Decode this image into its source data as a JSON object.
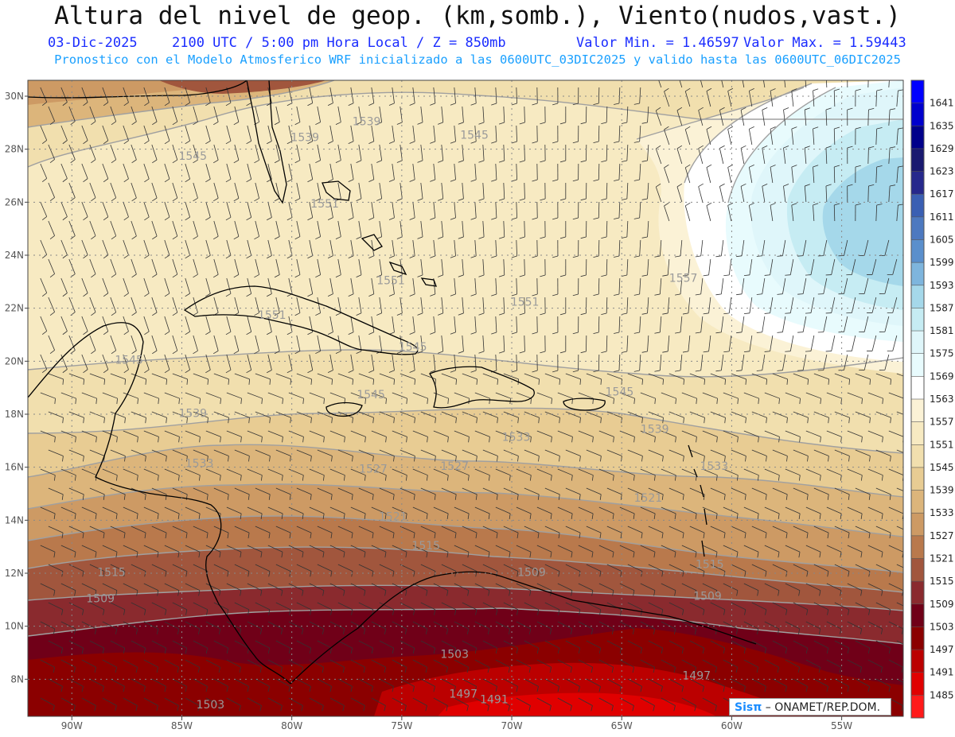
{
  "header": {
    "title": "Altura del nivel de geop. (km,somb.), Viento(nudos,vast.)",
    "date": "03-Dic-2025",
    "time": "2100 UTC / 5:00 pm Hora Local / Z = 850mb",
    "min": "Valor Min. = 1.46597",
    "max": "Valor Max. = 1.59443",
    "forecast": "Pronostico con el Modelo Atmosferico WRF inicializado a las 0600UTC_03DIC2025 y valido hasta las  0600UTC_06DIC2025"
  },
  "credit": {
    "brand": "Sisπ",
    "text": "– ONAMET/REP.DOM."
  },
  "map": {
    "lon_labels": [
      "90W",
      "85W",
      "80W",
      "75W",
      "70W",
      "65W",
      "60W",
      "55W"
    ],
    "lat_labels": [
      "30N",
      "28N",
      "26N",
      "24N",
      "22N",
      "20N",
      "18N",
      "16N",
      "14N",
      "12N",
      "10N",
      "8N"
    ],
    "lon_range": [
      -92,
      -52.2
    ],
    "lat_range": [
      6.6,
      30.6
    ],
    "colorbar": {
      "levels": [
        "1641",
        "1635",
        "1629",
        "1623",
        "1617",
        "1611",
        "1605",
        "1599",
        "1593",
        "1587",
        "1581",
        "1575",
        "1569",
        "1563",
        "1557",
        "1551",
        "1545",
        "1539",
        "1533",
        "1527",
        "1521",
        "1515",
        "1509",
        "1503",
        "1497",
        "1491",
        "1485"
      ],
      "colors": [
        "#0000ff",
        "#0000cd",
        "#00008b",
        "#191970",
        "#26288c",
        "#3a5fb3",
        "#4d79c0",
        "#5a8fcc",
        "#7eb5dd",
        "#a5d8ea",
        "#c6ecf3",
        "#dff6fa",
        "#e8fbfd",
        "#ffffff",
        "#fbf2d6",
        "#f7eac2",
        "#f1dfae",
        "#e8cc93",
        "#dcb57b",
        "#cd9a64",
        "#b9794c",
        "#a1563d",
        "#8a2a2e",
        "#700018",
        "#8b0000",
        "#bb0000",
        "#e00000",
        "#ff1a1a"
      ]
    },
    "contour_labels": [
      {
        "text": "1539",
        "lon": -79.4,
        "lat": 28.3
      },
      {
        "text": "1539",
        "lon": -76.6,
        "lat": 28.9
      },
      {
        "text": "1545",
        "lon": -84.5,
        "lat": 27.6
      },
      {
        "text": "1545",
        "lon": -71.7,
        "lat": 28.4
      },
      {
        "text": "1551",
        "lon": -78.5,
        "lat": 25.8
      },
      {
        "text": "1551",
        "lon": -75.5,
        "lat": 22.9
      },
      {
        "text": "1551",
        "lon": -80.9,
        "lat": 21.6
      },
      {
        "text": "1551",
        "lon": -69.4,
        "lat": 22.1
      },
      {
        "text": "1557",
        "lon": -62.2,
        "lat": 23.0
      },
      {
        "text": "1545",
        "lon": -74.5,
        "lat": 20.4
      },
      {
        "text": "1545",
        "lon": -87.4,
        "lat": 19.9
      },
      {
        "text": "1545",
        "lon": -76.4,
        "lat": 18.6
      },
      {
        "text": "1545",
        "lon": -65.1,
        "lat": 18.7
      },
      {
        "text": "1539",
        "lon": -84.5,
        "lat": 17.9
      },
      {
        "text": "1539",
        "lon": -63.5,
        "lat": 17.3
      },
      {
        "text": "1533",
        "lon": -69.8,
        "lat": 17.0
      },
      {
        "text": "1533",
        "lon": -84.2,
        "lat": 16.0
      },
      {
        "text": "1533",
        "lon": -60.8,
        "lat": 15.9
      },
      {
        "text": "1527",
        "lon": -76.3,
        "lat": 15.8
      },
      {
        "text": "1527",
        "lon": -72.6,
        "lat": 15.9
      },
      {
        "text": "1521",
        "lon": -75.4,
        "lat": 14.0
      },
      {
        "text": "1521",
        "lon": -63.8,
        "lat": 14.7
      },
      {
        "text": "1515",
        "lon": -88.2,
        "lat": 11.9
      },
      {
        "text": "1515",
        "lon": -73.9,
        "lat": 12.9
      },
      {
        "text": "1515",
        "lon": -61.0,
        "lat": 12.2
      },
      {
        "text": "1509",
        "lon": -88.7,
        "lat": 10.9
      },
      {
        "text": "1509",
        "lon": -69.1,
        "lat": 11.9
      },
      {
        "text": "1509",
        "lon": -61.1,
        "lat": 11.0
      },
      {
        "text": "1503",
        "lon": -72.6,
        "lat": 8.8
      },
      {
        "text": "1503",
        "lon": -83.7,
        "lat": 6.9
      },
      {
        "text": "1497",
        "lon": -72.2,
        "lat": 7.3
      },
      {
        "text": "1497",
        "lon": -61.6,
        "lat": 8.0
      },
      {
        "text": "1491",
        "lon": -70.8,
        "lat": 7.1
      }
    ]
  }
}
